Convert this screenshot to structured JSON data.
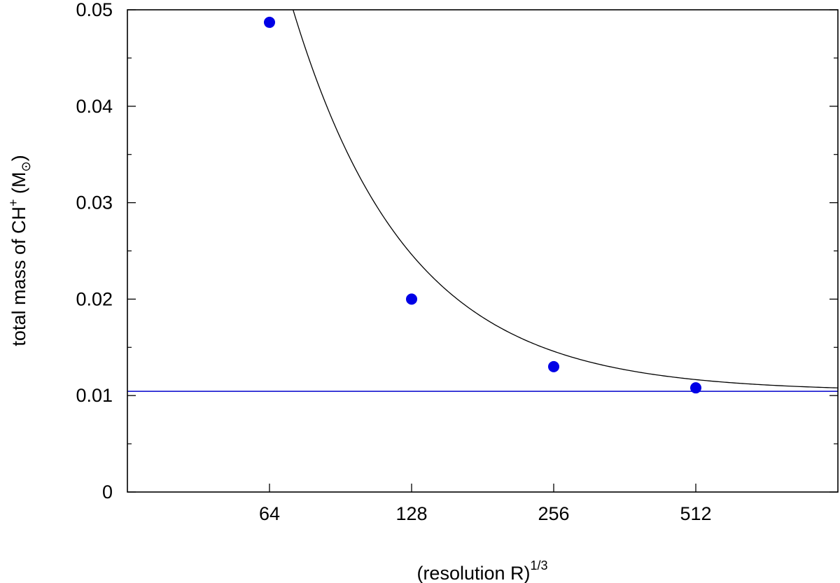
{
  "chart_data": {
    "type": "scatter",
    "x_scale": "log2",
    "x_ticks": [
      64,
      128,
      256,
      512
    ],
    "x_tick_labels": [
      "64",
      "128",
      "256",
      "512"
    ],
    "xlim": [
      64,
      1024
    ],
    "y_ticks": [
      0,
      0.01,
      0.02,
      0.03,
      0.04,
      0.05
    ],
    "y_tick_labels": [
      "0",
      "0.01",
      "0.02",
      "0.03",
      "0.04",
      "0.05"
    ],
    "ylim": [
      0,
      0.05
    ],
    "xlabel": {
      "main": "(resolution R)",
      "sup": "1/3"
    },
    "ylabel": {
      "prefix": "total mass of CH",
      "sup": "+",
      "unit_open": " (M",
      "unit_sub": "⊙",
      "unit_close": ")"
    },
    "points": [
      {
        "x": 64,
        "y": 0.0487
      },
      {
        "x": 128,
        "y": 0.02
      },
      {
        "x": 256,
        "y": 0.013
      },
      {
        "x": 512,
        "y": 0.0108
      }
    ],
    "fit_curve": {
      "form": "y = a + b * x^(-p)",
      "a": 0.01044,
      "b": 77.3,
      "p": 1.773,
      "color": "#000000"
    },
    "asymptote": {
      "y": 0.01044,
      "color": "#0000cc"
    },
    "point_color": "#0000e6",
    "grid": false
  }
}
